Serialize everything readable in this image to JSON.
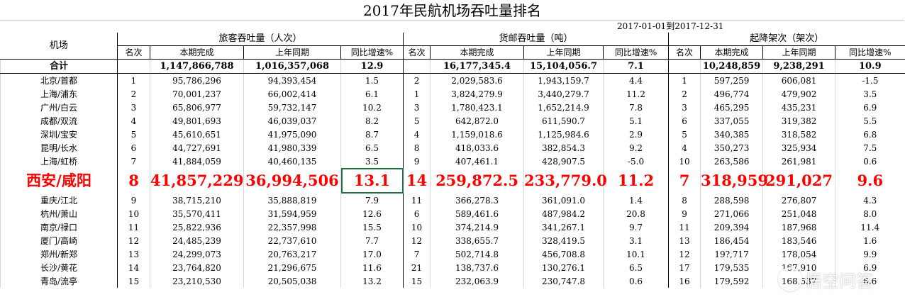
{
  "title": "2017年民航机场吞吐量排名",
  "date_range": "2017-01-01到2017-12-31",
  "headers": {
    "airport": "机场",
    "passenger_group": "旅客吞吐量（人次）",
    "cargo_group": "货邮吞吐量（吨）",
    "flights_group": "起降架次（架次）",
    "rank": "名次",
    "current": "本期完成",
    "last_year": "上年同期",
    "growth": "同比增速%"
  },
  "total": {
    "label": "合计",
    "p_cur": "1,147,866,788",
    "p_last": "1,016,357,068",
    "p_g": "12.9",
    "c_cur": "16,177,345.4",
    "c_last": "15,104,056.7",
    "c_g": "7.1",
    "f_cur": "10,248,859",
    "f_last": "9,238,291",
    "f_g": "10.9"
  },
  "rows": [
    {
      "name": "北京/首都",
      "p_rank": "1",
      "p_cur": "95,786,296",
      "p_last": "94,393,454",
      "p_g": "1.5",
      "c_rank": "2",
      "c_cur": "2,029,583.6",
      "c_last": "1,943,159.7",
      "c_g": "4.4",
      "f_rank": "1",
      "f_cur": "597,259",
      "f_last": "606,081",
      "f_g": "-1.5"
    },
    {
      "name": "上海/浦东",
      "p_rank": "2",
      "p_cur": "70,001,237",
      "p_last": "66,002,414",
      "p_g": "6.1",
      "c_rank": "1",
      "c_cur": "3,824,279.9",
      "c_last": "3,440,279.7",
      "c_g": "11.2",
      "f_rank": "2",
      "f_cur": "496,774",
      "f_last": "479,902",
      "f_g": "3.5"
    },
    {
      "name": "广州/白云",
      "p_rank": "3",
      "p_cur": "65,806,977",
      "p_last": "59,732,147",
      "p_g": "10.2",
      "c_rank": "3",
      "c_cur": "1,780,423.1",
      "c_last": "1,652,214.9",
      "c_g": "7.8",
      "f_rank": "3",
      "f_cur": "465,295",
      "f_last": "435,231",
      "f_g": "6.9"
    },
    {
      "name": "成都/双流",
      "p_rank": "4",
      "p_cur": "49,801,693",
      "p_last": "46,039,037",
      "p_g": "8.2",
      "c_rank": "5",
      "c_cur": "642,872.0",
      "c_last": "611,590.7",
      "c_g": "5.1",
      "f_rank": "6",
      "f_cur": "337,055",
      "f_last": "319,382",
      "f_g": "5.5"
    },
    {
      "name": "深圳/宝安",
      "p_rank": "5",
      "p_cur": "45,610,651",
      "p_last": "41,975,090",
      "p_g": "8.7",
      "c_rank": "4",
      "c_cur": "1,159,018.6",
      "c_last": "1,125,984.6",
      "c_g": "2.9",
      "f_rank": "5",
      "f_cur": "340,385",
      "f_last": "318,582",
      "f_g": "6.8"
    },
    {
      "name": "昆明/长水",
      "p_rank": "6",
      "p_cur": "44,727,691",
      "p_last": "41,980,339",
      "p_g": "6.5",
      "c_rank": "8",
      "c_cur": "418,033.6",
      "c_last": "382,854.3",
      "c_g": "9.2",
      "f_rank": "4",
      "f_cur": "350,273",
      "f_last": "325,934",
      "f_g": "7.5"
    },
    {
      "name": "上海/虹桥",
      "p_rank": "7",
      "p_cur": "41,884,059",
      "p_last": "40,460,135",
      "p_g": "3.5",
      "c_rank": "9",
      "c_cur": "407,461.1",
      "c_last": "428,907.5",
      "c_g": "-5.0",
      "f_rank": "10",
      "f_cur": "263,586",
      "f_last": "261,981",
      "f_g": "0.6"
    },
    {
      "name": "西安/咸阳",
      "highlight": true,
      "p_rank": "8",
      "p_cur": "41,857,229",
      "p_last": "36,994,506",
      "p_g": "13.1",
      "c_rank": "14",
      "c_cur": "259,872.5",
      "c_last": "233,779.0",
      "c_g": "11.2",
      "f_rank": "7",
      "f_cur": "318,959",
      "f_last": "291,027",
      "f_g": "9.6"
    },
    {
      "name": "重庆/江北",
      "p_rank": "9",
      "p_cur": "38,715,210",
      "p_last": "35,888,819",
      "p_g": "7.9",
      "c_rank": "11",
      "c_cur": "366,278.3",
      "c_last": "361,091.0",
      "c_g": "1.4",
      "f_rank": "8",
      "f_cur": "288,598",
      "f_last": "276,807",
      "f_g": "4.3"
    },
    {
      "name": "杭州/萧山",
      "p_rank": "10",
      "p_cur": "35,570,411",
      "p_last": "31,594,959",
      "p_g": "12.6",
      "c_rank": "6",
      "c_cur": "589,461.6",
      "c_last": "487,984.2",
      "c_g": "20.8",
      "f_rank": "9",
      "f_cur": "271,066",
      "f_last": "251,048",
      "f_g": "8.0"
    },
    {
      "name": "南京/禄口",
      "p_rank": "11",
      "p_cur": "25,822,936",
      "p_last": "22,357,998",
      "p_g": "15.5",
      "c_rank": "10",
      "c_cur": "374,214.9",
      "c_last": "341,267.1",
      "c_g": "9.7",
      "f_rank": "11",
      "f_cur": "209,394",
      "f_last": "187,968",
      "f_g": "11.4"
    },
    {
      "name": "厦门/高崎",
      "p_rank": "12",
      "p_cur": "24,485,239",
      "p_last": "22,737,610",
      "p_g": "7.7",
      "c_rank": "12",
      "c_cur": "338,655.7",
      "c_last": "328,419.5",
      "c_g": "3.1",
      "f_rank": "13",
      "f_cur": "186,454",
      "f_last": "183,546",
      "f_g": "1.6"
    },
    {
      "name": "郑州/新郑",
      "p_rank": "13",
      "p_cur": "24,299,073",
      "p_last": "20,763,217",
      "p_g": "17.0",
      "c_rank": "7",
      "c_cur": "502,714.8",
      "c_last": "456,708.8",
      "c_g": "10.1",
      "f_rank": "12",
      "f_cur": "19?,717",
      "f_last": "178,054",
      "f_g": "9.9"
    },
    {
      "name": "长沙/黄花",
      "p_rank": "14",
      "p_cur": "23,764,820",
      "p_last": "21,296,675",
      "p_g": "11.6",
      "c_rank": "21",
      "c_cur": "138,737.6",
      "c_last": "130,276.1",
      "c_g": "6.5",
      "f_rank": "17",
      "f_cur": "179,535",
      "f_last": "167,910",
      "f_g": "6.9"
    },
    {
      "name": "青岛/流亭",
      "p_rank": "15",
      "p_cur": "23,210,530",
      "p_last": "20,505,038",
      "p_g": "13.2",
      "c_rank": "15",
      "c_cur": "232,063.9",
      "c_last": "230,747.8",
      "c_g": "0.6",
      "f_rank": "16",
      "f_cur": "179,592",
      "f_last": "168,537",
      "f_g": "6.6"
    }
  ],
  "watermark": {
    "text": "悟空问答",
    "icon": "wukong-logo-icon"
  }
}
